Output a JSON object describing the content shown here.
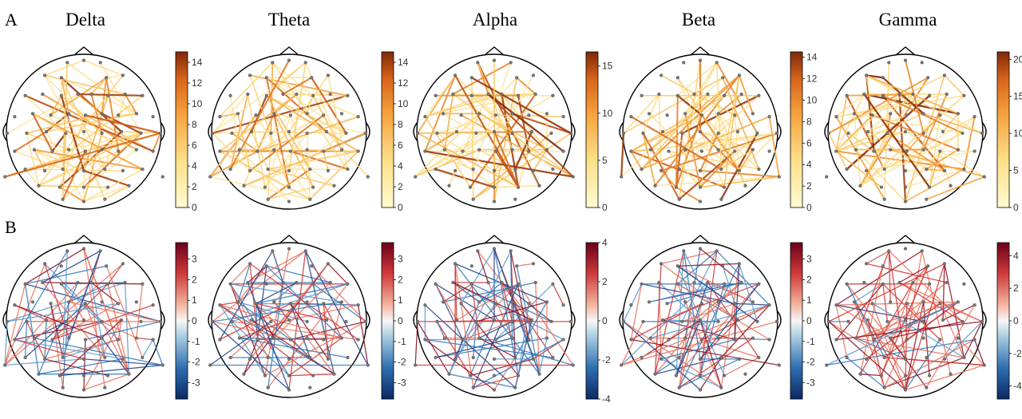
{
  "figure": {
    "row_labels": [
      "A",
      "B"
    ],
    "bands": [
      "Delta",
      "Theta",
      "Alpha",
      "Beta",
      "Gamma"
    ]
  },
  "colors": {
    "edge_strength_low": "#fff3b8",
    "edge_strength_mid": "#f6a23c",
    "edge_strength_high": "#8a2a0a",
    "positive": "#c8102e",
    "negative": "#2b6fb5",
    "head_outline": "#000000",
    "electrode": "#7a7a7a"
  },
  "chart_data": [
    {
      "type": "network",
      "panel": "A",
      "band": "Delta",
      "colorbar_ticks": [
        0,
        2,
        4,
        6,
        8,
        10,
        12,
        14
      ],
      "colorbar_range": [
        0,
        15
      ]
    },
    {
      "type": "network",
      "panel": "A",
      "band": "Theta",
      "colorbar_ticks": [
        0,
        2,
        4,
        6,
        8,
        10,
        12,
        14
      ],
      "colorbar_range": [
        0,
        15
      ]
    },
    {
      "type": "network",
      "panel": "A",
      "band": "Alpha",
      "colorbar_ticks": [
        0,
        5,
        10,
        15
      ],
      "colorbar_range": [
        0,
        16.5
      ]
    },
    {
      "type": "network",
      "panel": "A",
      "band": "Beta",
      "colorbar_ticks": [
        0,
        2,
        4,
        6,
        8,
        10,
        12,
        14
      ],
      "colorbar_range": [
        0,
        14.5
      ]
    },
    {
      "type": "network",
      "panel": "A",
      "band": "Gamma",
      "colorbar_ticks": [
        0,
        5,
        10,
        15,
        20
      ],
      "colorbar_range": [
        0,
        21
      ]
    },
    {
      "type": "network",
      "panel": "B",
      "band": "Delta",
      "colorbar_ticks": [
        -3,
        -2,
        -1,
        0,
        1,
        2,
        3
      ],
      "colorbar_range": [
        -3.8,
        3.8
      ]
    },
    {
      "type": "network",
      "panel": "B",
      "band": "Theta",
      "colorbar_ticks": [
        -3,
        -2,
        -1,
        0,
        1,
        2,
        3
      ],
      "colorbar_range": [
        -3.8,
        3.8
      ]
    },
    {
      "type": "network",
      "panel": "B",
      "band": "Alpha",
      "colorbar_ticks": [
        -4,
        -2,
        0,
        2,
        4
      ],
      "colorbar_range": [
        -4,
        4
      ]
    },
    {
      "type": "network",
      "panel": "B",
      "band": "Beta",
      "colorbar_ticks": [
        -3,
        -2,
        -1,
        0,
        1,
        2,
        3
      ],
      "colorbar_range": [
        -3.8,
        3.8
      ]
    },
    {
      "type": "network",
      "panel": "B",
      "band": "Gamma",
      "colorbar_ticks": [
        -4,
        -2,
        0,
        2,
        4
      ],
      "colorbar_range": [
        -4.8,
        4.8
      ]
    }
  ]
}
